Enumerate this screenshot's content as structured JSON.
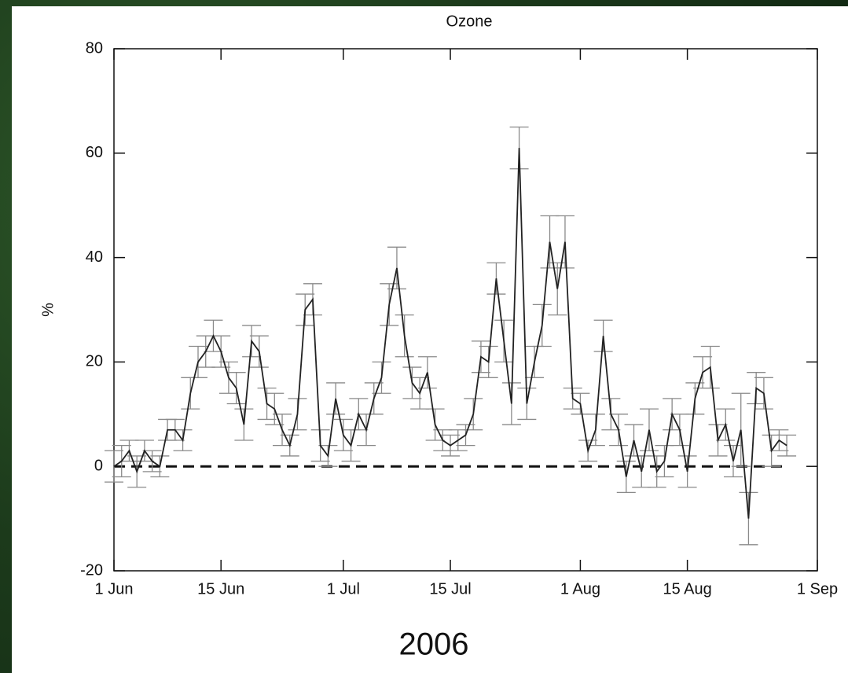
{
  "chart_data": {
    "type": "line",
    "title": "Ozone",
    "y_label": "%",
    "caption": "2006",
    "x": [
      "2006-06-01",
      "2006-06-02",
      "2006-06-03",
      "2006-06-04",
      "2006-06-05",
      "2006-06-06",
      "2006-06-07",
      "2006-06-08",
      "2006-06-09",
      "2006-06-10",
      "2006-06-11",
      "2006-06-12",
      "2006-06-13",
      "2006-06-14",
      "2006-06-15",
      "2006-06-16",
      "2006-06-17",
      "2006-06-18",
      "2006-06-19",
      "2006-06-20",
      "2006-06-21",
      "2006-06-22",
      "2006-06-23",
      "2006-06-24",
      "2006-06-25",
      "2006-06-26",
      "2006-06-27",
      "2006-06-28",
      "2006-06-29",
      "2006-06-30",
      "2006-07-01",
      "2006-07-02",
      "2006-07-03",
      "2006-07-04",
      "2006-07-05",
      "2006-07-06",
      "2006-07-07",
      "2006-07-08",
      "2006-07-09",
      "2006-07-10",
      "2006-07-11",
      "2006-07-12",
      "2006-07-13",
      "2006-07-14",
      "2006-07-15",
      "2006-07-16",
      "2006-07-17",
      "2006-07-18",
      "2006-07-19",
      "2006-07-20",
      "2006-07-21",
      "2006-07-22",
      "2006-07-23",
      "2006-07-24",
      "2006-07-25",
      "2006-07-26",
      "2006-07-27",
      "2006-07-28",
      "2006-07-29",
      "2006-07-30",
      "2006-07-31",
      "2006-08-01",
      "2006-08-02",
      "2006-08-03",
      "2006-08-04",
      "2006-08-05",
      "2006-08-06",
      "2006-08-07",
      "2006-08-08",
      "2006-08-09",
      "2006-08-10",
      "2006-08-11",
      "2006-08-12",
      "2006-08-13",
      "2006-08-14",
      "2006-08-15",
      "2006-08-16",
      "2006-08-17",
      "2006-08-18",
      "2006-08-19",
      "2006-08-20",
      "2006-08-21",
      "2006-08-22",
      "2006-08-23",
      "2006-08-24",
      "2006-08-25",
      "2006-08-26",
      "2006-08-27",
      "2006-08-28"
    ],
    "values": [
      0,
      1,
      3,
      -1,
      3,
      1,
      0,
      7,
      7,
      5,
      14,
      20,
      22,
      25,
      22,
      17,
      15,
      8,
      24,
      22,
      12,
      11,
      7,
      4,
      10,
      30,
      32,
      4,
      2,
      13,
      6,
      4,
      10,
      7,
      13,
      17,
      31,
      38,
      25,
      16,
      14,
      18,
      8,
      5,
      4,
      5,
      6,
      10,
      21,
      20,
      36,
      24,
      12,
      61,
      12,
      20,
      27,
      43,
      34,
      43,
      13,
      12,
      3,
      7,
      25,
      10,
      7,
      -2,
      5,
      -1,
      7,
      -1,
      1,
      10,
      7,
      -1,
      13,
      18,
      19,
      5,
      8,
      1,
      7,
      -10,
      15,
      14,
      3,
      5,
      4
    ],
    "errors": [
      3,
      3,
      2,
      3,
      2,
      2,
      2,
      2,
      2,
      2,
      3,
      3,
      3,
      3,
      3,
      3,
      3,
      3,
      3,
      3,
      3,
      3,
      3,
      2,
      3,
      3,
      3,
      3,
      2,
      3,
      3,
      3,
      3,
      3,
      3,
      3,
      4,
      4,
      4,
      3,
      3,
      3,
      3,
      2,
      2,
      2,
      2,
      3,
      3,
      3,
      3,
      4,
      4,
      4,
      3,
      3,
      4,
      5,
      5,
      5,
      2,
      2,
      2,
      3,
      3,
      3,
      3,
      3,
      3,
      3,
      4,
      3,
      3,
      3,
      3,
      3,
      3,
      3,
      4,
      3,
      3,
      3,
      7,
      5,
      3,
      3,
      3,
      2,
      2
    ],
    "color": "#222222",
    "error_color": "#8a8a8a",
    "xlim": [
      "2006-06-01",
      "2006-09-01"
    ],
    "xticks": [
      {
        "value": "2006-06-01",
        "label": "1 Jun"
      },
      {
        "value": "2006-06-15",
        "label": "15 Jun"
      },
      {
        "value": "2006-07-01",
        "label": "1 Jul"
      },
      {
        "value": "2006-07-15",
        "label": "15 Jul"
      },
      {
        "value": "2006-08-01",
        "label": "1 Aug"
      },
      {
        "value": "2006-08-15",
        "label": "15 Aug"
      },
      {
        "value": "2006-09-01",
        "label": "1 Sep"
      }
    ],
    "ylim": [
      -20,
      80
    ],
    "yticks": [
      -20,
      0,
      20,
      40,
      60,
      80
    ],
    "reference_line": 0
  }
}
